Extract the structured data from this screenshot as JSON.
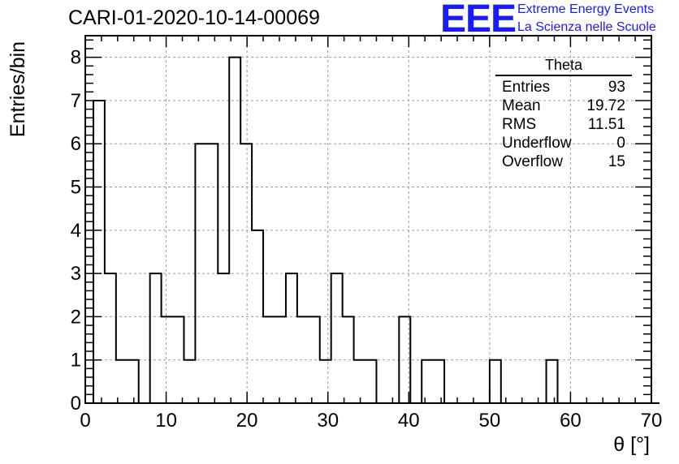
{
  "title": "CARI-01-2020-10-14-00069",
  "logo": {
    "mark": "EEE",
    "line1": "Extreme Energy Events",
    "line2": "La Scienza nelle Scuole"
  },
  "stats": {
    "title": "Theta",
    "rows": [
      {
        "label": "Entries",
        "value": "93"
      },
      {
        "label": "Mean",
        "value": "19.72"
      },
      {
        "label": "RMS",
        "value": "11.51"
      },
      {
        "label": "Underflow",
        "value": "0"
      },
      {
        "label": "Overflow",
        "value": "15"
      }
    ]
  },
  "chart_data": {
    "type": "histogram",
    "xlabel": "θ [°]",
    "ylabel": "Entries/bin",
    "xlim": [
      0,
      70
    ],
    "ylim": [
      0,
      8.5
    ],
    "xticks": [
      0,
      10,
      20,
      30,
      40,
      50,
      60,
      70
    ],
    "yticks": [
      0,
      1,
      2,
      3,
      4,
      5,
      6,
      7,
      8
    ],
    "grid": true,
    "bin_width": 1.4,
    "bin_start": 1.0,
    "values": [
      7,
      3,
      1,
      1,
      0,
      3,
      2,
      2,
      1,
      6,
      6,
      3,
      8,
      6,
      4,
      2,
      2,
      3,
      2,
      2,
      1,
      3,
      2,
      1,
      1,
      0,
      0,
      2,
      0,
      1,
      1,
      0,
      0,
      0,
      0,
      1,
      0,
      0,
      0,
      0,
      1,
      0,
      0,
      0,
      0,
      0,
      0,
      0,
      0,
      0
    ]
  }
}
